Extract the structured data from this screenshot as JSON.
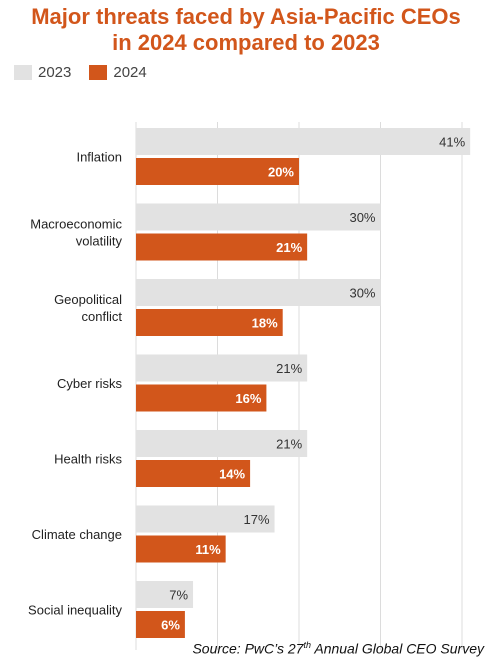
{
  "chart_data": {
    "type": "bar",
    "orientation": "horizontal",
    "title_lines": [
      "Major threats faced by Asia-Pacific CEOs",
      "in 2024 compared to 2023"
    ],
    "categories": [
      [
        "Inflation"
      ],
      [
        "Macroeconomic",
        "volatility"
      ],
      [
        "Geopolitical",
        "conflict"
      ],
      [
        "Cyber risks"
      ],
      [
        "Health risks"
      ],
      [
        "Climate change"
      ],
      [
        "Social inequality"
      ]
    ],
    "series": [
      {
        "name": "2023",
        "color": "#e2e2e2",
        "values": [
          41,
          30,
          30,
          21,
          21,
          17,
          7
        ],
        "labels": [
          "41%",
          "30%",
          "30%",
          "21%",
          "21%",
          "17%",
          "7%"
        ]
      },
      {
        "name": "2024",
        "color": "#d2561b",
        "values": [
          20,
          21,
          18,
          16,
          14,
          11,
          6
        ],
        "labels": [
          "20%",
          "21%",
          "18%",
          "16%",
          "14%",
          "11%",
          "6%"
        ]
      }
    ],
    "xlim": [
      0,
      50
    ],
    "grid": true,
    "legend_position": "top-left"
  },
  "source": {
    "before": "Source: PwC’s 27",
    "sup": "th",
    "after": " Annual Global CEO Survey"
  }
}
